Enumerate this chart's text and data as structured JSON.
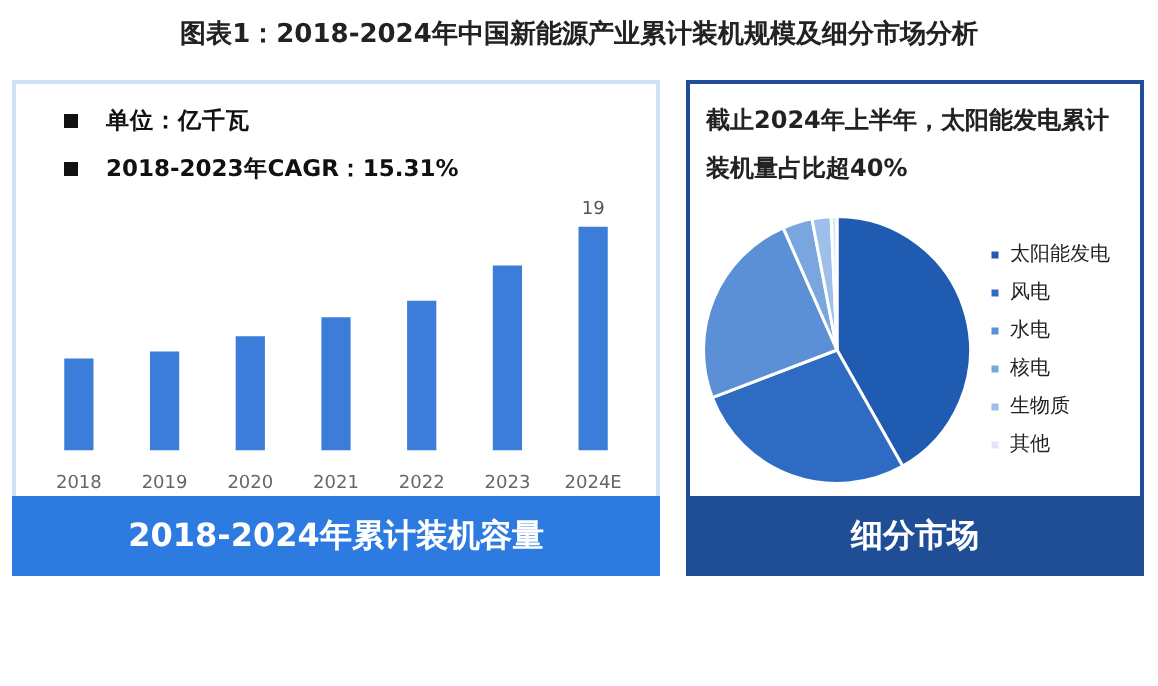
{
  "chart_data": [
    {
      "type": "bar",
      "title": "图表1：2018-2024年中国新能源产业累计装机规模及细分市场分析",
      "subtitle": "2018-2024年累计装机容量",
      "annotations": [
        "单位：亿千瓦",
        "2018-2023年CAGR：15.31%"
      ],
      "categories": [
        "2018",
        "2019",
        "2020",
        "2021",
        "2022",
        "2023",
        "2024E"
      ],
      "tick_labels": "x",
      "values": [
        7.8,
        8.4,
        9.7,
        11.3,
        12.7,
        15.7,
        19
      ],
      "value_labels": [
        null,
        null,
        null,
        null,
        null,
        null,
        "19"
      ],
      "color": "#3b7dd8",
      "grid": false,
      "legend": false
    },
    {
      "type": "pie",
      "title": "截止2024年上半年，太阳能发电累计装机量占比超40%",
      "subtitle": "细分市场",
      "categories": [
        "太阳能发电",
        "风电",
        "水电",
        "核电",
        "生物质",
        "其他"
      ],
      "values": [
        41.8,
        27.4,
        24.2,
        3.6,
        2.3,
        0.7
      ],
      "colors": [
        "#1f5bb0",
        "#2e6cc4",
        "#5b8fd6",
        "#7aa6e0",
        "#9dbfea",
        "#dfe8f5"
      ],
      "legend": "right"
    }
  ]
}
